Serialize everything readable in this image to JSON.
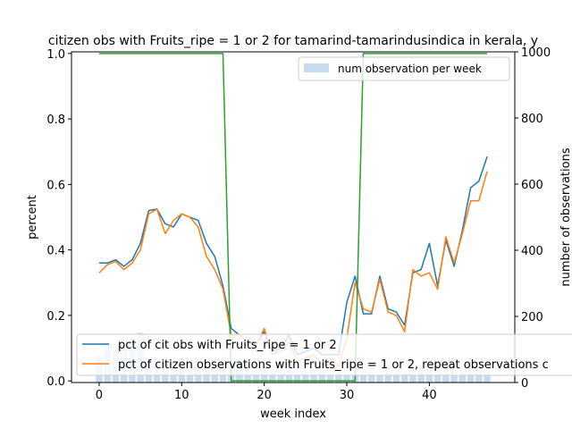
{
  "chart_data": {
    "type": "line",
    "title": "citizen obs with Fruits_ripe = 1 or 2 for tamarind-tamarindusindica in kerala, y",
    "xlabel": "week index",
    "ylabel": "percent",
    "y2label": "number of observations",
    "xlim": [
      -3.35,
      50.35
    ],
    "ylim": [
      -0.005,
      1.005
    ],
    "y2lim": [
      0,
      1000
    ],
    "xticks": [
      0,
      10,
      20,
      30,
      40
    ],
    "yticks": [
      0.0,
      0.2,
      0.4,
      0.6,
      0.8,
      1.0
    ],
    "y2ticks": [
      0,
      200,
      400,
      600,
      800,
      1000
    ],
    "legend_left_placement": "lower-left",
    "legend_right_placement": "upper-right",
    "x": [
      0,
      1,
      2,
      3,
      4,
      5,
      6,
      7,
      8,
      9,
      10,
      11,
      12,
      13,
      14,
      15,
      16,
      17,
      18,
      19,
      20,
      21,
      22,
      23,
      24,
      25,
      26,
      27,
      28,
      29,
      30,
      31,
      32,
      33,
      34,
      35,
      36,
      37,
      38,
      39,
      40,
      41,
      42,
      43,
      44,
      45,
      46,
      47
    ],
    "series": [
      {
        "name": "pct of cit obs with Fruits_ripe = 1 or 2",
        "color": "#1f77b4",
        "axis": "left",
        "values": [
          0.36,
          0.36,
          0.37,
          0.35,
          0.37,
          0.42,
          0.52,
          0.525,
          0.48,
          0.47,
          0.51,
          0.5,
          0.49,
          0.42,
          0.38,
          0.29,
          0.16,
          0.14,
          0.12,
          0.11,
          0.15,
          0.09,
          0.1,
          0.14,
          0.08,
          0.09,
          0.1,
          0.08,
          0.08,
          0.08,
          0.24,
          0.32,
          0.205,
          0.205,
          0.32,
          0.22,
          0.21,
          0.17,
          0.33,
          0.34,
          0.42,
          0.29,
          0.43,
          0.35,
          0.46,
          0.59,
          0.61,
          0.685
        ]
      },
      {
        "name": "pct of citizen observations with Fruits_ripe = 1 or 2, repeat observations c",
        "color": "#ff7f0e",
        "axis": "left",
        "values": [
          0.33,
          0.355,
          0.365,
          0.34,
          0.36,
          0.4,
          0.51,
          0.525,
          0.45,
          0.49,
          0.51,
          0.5,
          0.47,
          0.38,
          0.34,
          0.28,
          0.14,
          0.14,
          0.12,
          0.11,
          0.16,
          0.08,
          0.09,
          0.12,
          0.06,
          0.07,
          0.08,
          0.05,
          0.05,
          0.05,
          0.13,
          0.3,
          0.22,
          0.21,
          0.31,
          0.21,
          0.2,
          0.15,
          0.34,
          0.32,
          0.33,
          0.28,
          0.44,
          0.36,
          0.45,
          0.55,
          0.55,
          0.64
        ]
      },
      {
        "name": "",
        "color": "#2ca02c",
        "axis": "left",
        "x": [
          0,
          15,
          16,
          31,
          32,
          47
        ],
        "values": [
          1.0,
          1.0,
          0.0,
          0.0,
          1.0,
          1.0
        ]
      }
    ],
    "bars": {
      "name": "num observation per week",
      "color": "#c6dbef",
      "axis": "right",
      "values": [
        80,
        120,
        95,
        100,
        115,
        150,
        70,
        60,
        55,
        45,
        50,
        55,
        45,
        40,
        45,
        70,
        55,
        70,
        40,
        35,
        45,
        30,
        35,
        45,
        30,
        30,
        40,
        35,
        25,
        30,
        25,
        30,
        35,
        30,
        25,
        35,
        30,
        30,
        40,
        45,
        50,
        45,
        45,
        40,
        50,
        70,
        40,
        30
      ]
    }
  }
}
